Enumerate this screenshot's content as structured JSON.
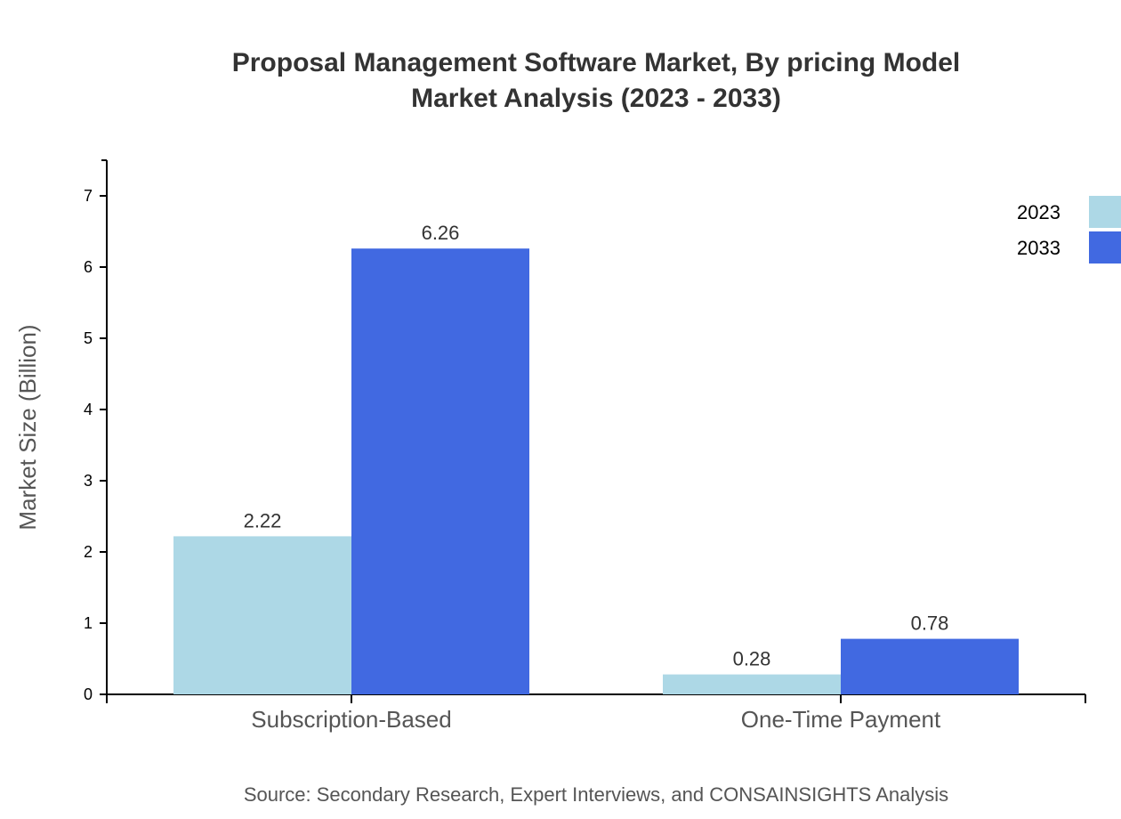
{
  "chart_data": {
    "type": "bar",
    "title": "Proposal Management Software Market, By pricing Model",
    "subtitle": "Market Analysis (2023 - 2033)",
    "xlabel": "",
    "ylabel": "Market Size (Billion)",
    "categories": [
      "Subscription-Based",
      "One-Time Payment"
    ],
    "series": [
      {
        "name": "2023",
        "values": [
          2.22,
          0.28
        ],
        "color": "#ADD8E6"
      },
      {
        "name": "2033",
        "values": [
          6.26,
          0.78
        ],
        "color": "#4169E1"
      }
    ],
    "ylim": [
      0,
      7.5
    ],
    "yticks": [
      0,
      1,
      2,
      3,
      4,
      5,
      6,
      7
    ],
    "grid": false,
    "legend_position": "top-right",
    "source": "Source: Secondary Research, Expert Interviews, and CONSAINSIGHTS Analysis"
  }
}
